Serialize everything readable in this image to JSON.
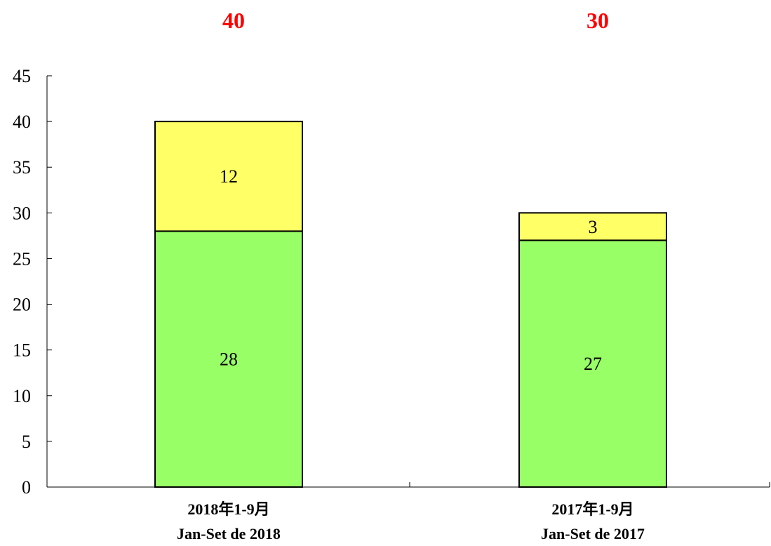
{
  "chart_data": {
    "type": "bar",
    "stacked": true,
    "categories": [
      [
        "2018年1-9月",
        "Jan-Set de 2018"
      ],
      [
        "2017年1-9月",
        "Jan-Set de 2017"
      ]
    ],
    "series": [
      {
        "values": [
          28,
          27
        ],
        "color": "#99ff66"
      },
      {
        "values": [
          12,
          3
        ],
        "color": "#ffff66"
      }
    ],
    "totals": [
      40,
      30
    ],
    "total_color": "#ff0000",
    "ylim": [
      0,
      45
    ],
    "yticks": [
      0,
      5,
      10,
      15,
      20,
      25,
      30,
      35,
      40,
      45
    ],
    "grid": false,
    "legend": "none"
  }
}
